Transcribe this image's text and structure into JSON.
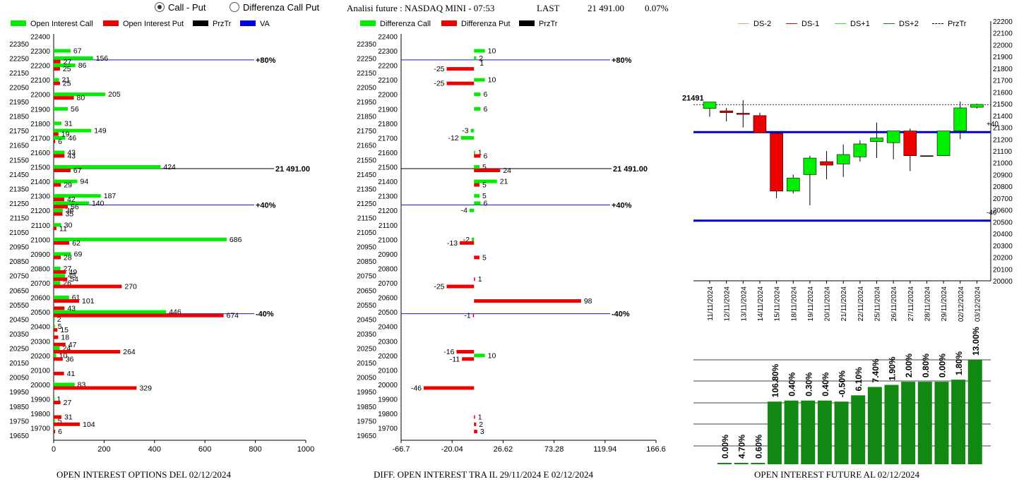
{
  "controls": {
    "radio_call_put": "Call - Put",
    "radio_diff": "Differenza Call Put",
    "selected": "call_put"
  },
  "header": {
    "title": "Analisi future : NASDAQ MINI - 07:53",
    "last_label": "LAST",
    "last_value": "21 491.00",
    "change": "0.07%"
  },
  "legend1": [
    {
      "label": "Open Interest Call",
      "color": "#00ee00"
    },
    {
      "label": "Open Interest Put",
      "color": "#ee0000"
    },
    {
      "label": "PrzTr",
      "color": "#000000"
    },
    {
      "label": "VA",
      "color": "#0000ee"
    }
  ],
  "legend2": [
    {
      "label": "Differenza Call",
      "color": "#00ee00"
    },
    {
      "label": "Differenza Put",
      "color": "#ee0000"
    },
    {
      "label": "PrzTr",
      "color": "#000000"
    }
  ],
  "legend3": [
    {
      "label": "DS-2",
      "color": "#f4a07a",
      "style": "solid"
    },
    {
      "label": "DS-1",
      "color": "#ee0000",
      "style": "solid"
    },
    {
      "label": "DS+1",
      "color": "#33ee33",
      "style": "solid"
    },
    {
      "label": "DS+2",
      "color": "#118811",
      "style": "solid"
    },
    {
      "label": "PrzTr",
      "color": "#000000",
      "style": "dashed"
    }
  ],
  "captions": {
    "c1": "OPEN INTEREST OPTIONS DEL 02/12/2024",
    "c2": "DIFF. OPEN INTEREST TRA IL 29/11/2024 E 02/12/2024",
    "c3": "OPEN INTEREST FUTURE AL 02/12/2024"
  },
  "chart_data": [
    {
      "type": "bar",
      "orientation": "horizontal",
      "strikes": [
        22400,
        22350,
        22300,
        22250,
        22200,
        22150,
        22100,
        22050,
        22000,
        21950,
        21900,
        21850,
        21800,
        21750,
        21700,
        21650,
        21600,
        21550,
        21500,
        21450,
        21400,
        21350,
        21300,
        21250,
        21200,
        21150,
        21100,
        21050,
        21000,
        20950,
        20900,
        20850,
        20800,
        20750,
        20700,
        20650,
        20600,
        20550,
        20500,
        20450,
        20400,
        20350,
        20300,
        20250,
        20200,
        20150,
        20100,
        20050,
        20000,
        19950,
        19900,
        19850,
        19800,
        19750,
        19700,
        19650
      ],
      "series": [
        {
          "name": "Open Interest Call",
          "color": "#00ee00",
          "values": [
            null,
            null,
            67,
            156,
            86,
            null,
            21,
            null,
            205,
            null,
            56,
            null,
            31,
            149,
            46,
            null,
            43,
            null,
            424,
            null,
            94,
            null,
            187,
            140,
            36,
            null,
            30,
            null,
            686,
            null,
            69,
            null,
            27,
            45,
            26,
            null,
            61,
            null,
            446,
            2,
            5,
            null,
            null,
            24,
            10,
            null,
            null,
            null,
            83,
            null,
            1,
            null,
            null,
            5,
            null,
            null
          ]
        },
        {
          "name": "Open Interest Put",
          "color": "#ee0000",
          "values": [
            null,
            null,
            null,
            27,
            25,
            null,
            25,
            null,
            80,
            null,
            null,
            null,
            null,
            19,
            6,
            null,
            43,
            null,
            67,
            null,
            29,
            null,
            42,
            56,
            35,
            null,
            11,
            null,
            62,
            null,
            28,
            null,
            49,
            54,
            270,
            null,
            101,
            43,
            674,
            null,
            15,
            18,
            47,
            264,
            36,
            null,
            41,
            null,
            329,
            null,
            27,
            null,
            31,
            104,
            6,
            null
          ]
        }
      ],
      "lines": [
        {
          "strike": 22250,
          "label": "+80%"
        },
        {
          "strike": 21500,
          "label": "21 491.00"
        },
        {
          "strike": 21250,
          "label": "+40%"
        },
        {
          "strike": 20500,
          "label": "-40%"
        }
      ],
      "xlim": [
        0,
        1000
      ],
      "xticks": [
        0,
        200,
        400,
        600,
        800,
        1000
      ]
    },
    {
      "type": "bar",
      "orientation": "horizontal",
      "strikes": [
        22400,
        22350,
        22300,
        22250,
        22200,
        22150,
        22100,
        22050,
        22000,
        21950,
        21900,
        21850,
        21800,
        21750,
        21700,
        21650,
        21600,
        21550,
        21500,
        21450,
        21400,
        21350,
        21300,
        21250,
        21200,
        21150,
        21100,
        21050,
        21000,
        20950,
        20900,
        20850,
        20800,
        20750,
        20700,
        20650,
        20600,
        20550,
        20500,
        20450,
        20400,
        20350,
        20300,
        20250,
        20200,
        20150,
        20100,
        20050,
        20000,
        19950,
        19900,
        19850,
        19800,
        19750,
        19700,
        19650
      ],
      "series": [
        {
          "name": "Differenza Call",
          "color": "#00ee00",
          "values": [
            null,
            null,
            10,
            2,
            null,
            null,
            10,
            null,
            6,
            null,
            6,
            null,
            null,
            -3,
            -12,
            null,
            1,
            null,
            5,
            null,
            21,
            null,
            5,
            6,
            -4,
            null,
            null,
            null,
            -2,
            null,
            null,
            null,
            null,
            null,
            null,
            null,
            null,
            null,
            null,
            null,
            null,
            null,
            null,
            null,
            10,
            null,
            null,
            null,
            null,
            null,
            null,
            null,
            null,
            null,
            null,
            null
          ]
        },
        {
          "name": "Differenza Put",
          "color": "#ee0000",
          "values": [
            null,
            null,
            null,
            null,
            -25,
            null,
            -25,
            null,
            null,
            null,
            null,
            null,
            null,
            null,
            null,
            null,
            6,
            null,
            24,
            null,
            5,
            null,
            null,
            null,
            null,
            null,
            null,
            null,
            -13,
            null,
            5,
            null,
            null,
            1,
            -25,
            null,
            98,
            null,
            -1,
            null,
            null,
            null,
            null,
            -16,
            -11,
            null,
            null,
            null,
            -46,
            null,
            null,
            null,
            1,
            2,
            3,
            null
          ]
        }
      ],
      "extra_labels": [
        {
          "strike": 22250,
          "value": 1
        }
      ],
      "lines": [
        {
          "strike": 22250,
          "label": "+80%"
        },
        {
          "strike": 21500,
          "label": "21 491.00"
        },
        {
          "strike": 21250,
          "label": "+40%"
        },
        {
          "strike": 20500,
          "label": "-40%"
        }
      ],
      "xlim": [
        -66.7,
        166.6
      ],
      "xticks": [
        "-66.7",
        "-20.04",
        "26.62",
        "73.28",
        "119.94",
        "166.6"
      ]
    },
    {
      "type": "candlestick",
      "dates": [
        "11/11/2024",
        "12/11/2024",
        "13/11/2024",
        "14/11/2024",
        "15/11/2024",
        "18/11/2024",
        "19/11/2024",
        "20/11/2024",
        "21/11/2024",
        "22/11/2024",
        "25/11/2024",
        "26/11/2024",
        "27/11/2024",
        "28/11/2024",
        "29/11/2024",
        "02/12/2024",
        "03/12/2024"
      ],
      "ohlc": [
        [
          21460,
          21515,
          21390,
          21515
        ],
        [
          21440,
          21465,
          21350,
          21425
        ],
        [
          21420,
          21530,
          21300,
          21410
        ],
        [
          21400,
          21425,
          21255,
          21255
        ],
        [
          21250,
          21250,
          20700,
          20760
        ],
        [
          20760,
          20900,
          20740,
          20870
        ],
        [
          20900,
          21060,
          20640,
          21040
        ],
        [
          21010,
          21100,
          20860,
          20980
        ],
        [
          20990,
          21155,
          20880,
          21070
        ],
        [
          21050,
          21190,
          21010,
          21160
        ],
        [
          21180,
          21340,
          21040,
          21210
        ],
        [
          21170,
          21270,
          21030,
          21270
        ],
        [
          21270,
          21290,
          20930,
          21060
        ],
        [
          21060,
          21060,
          21060,
          21060
        ],
        [
          21060,
          21270,
          21060,
          21270
        ],
        [
          21270,
          21520,
          21200,
          21465
        ],
        [
          21470,
          21500,
          21460,
          21495
        ]
      ],
      "price_label": "21491",
      "przTr": 21491,
      "levels": [
        {
          "value": 21260,
          "label": "+40",
          "color": "#0000cc"
        },
        {
          "value": 20510,
          "label": "-40",
          "color": "#0000cc"
        }
      ],
      "ylim": [
        20000,
        22200
      ],
      "yticks": [
        20000,
        20100,
        20200,
        20300,
        20400,
        20500,
        20600,
        20700,
        20800,
        20900,
        21000,
        21100,
        21200,
        21300,
        21400,
        21500,
        21600,
        21700,
        21800,
        21900,
        22000,
        22100,
        22200
      ]
    },
    {
      "type": "bar",
      "categories": [
        "11/11/2024",
        "12/11/2024",
        "13/11/2024",
        "14/11/2024",
        "15/11/2024",
        "18/11/2024",
        "19/11/2024",
        "20/11/2024",
        "21/11/2024",
        "22/11/2024",
        "25/11/2024",
        "26/11/2024",
        "27/11/2024",
        "28/11/2024",
        "29/11/2024",
        "02/12/2024"
      ],
      "values": [
        0.0,
        4.7,
        0.6,
        106.8,
        0.4,
        0.3,
        0.4,
        -0.5,
        6.1,
        7.4,
        1.9,
        2.0,
        0.8,
        0.0,
        1.8,
        13.0
      ],
      "labels": [
        "0.00%",
        "4.70%",
        "0.60%",
        "106.80%",
        "0.40%",
        "0.30%",
        "0.40%",
        "-0.50%",
        "6.10%",
        "7.40%",
        "1.90%",
        "2.00%",
        "0.80%",
        "0.00%",
        "1.80%",
        "13.00%"
      ],
      "heights_relative": [
        0.0,
        0.01,
        0.01,
        0.6,
        0.61,
        0.61,
        0.61,
        0.6,
        0.66,
        0.74,
        0.76,
        0.79,
        0.79,
        0.79,
        0.81,
        1.0
      ],
      "color": "#118811",
      "grid": true
    }
  ]
}
